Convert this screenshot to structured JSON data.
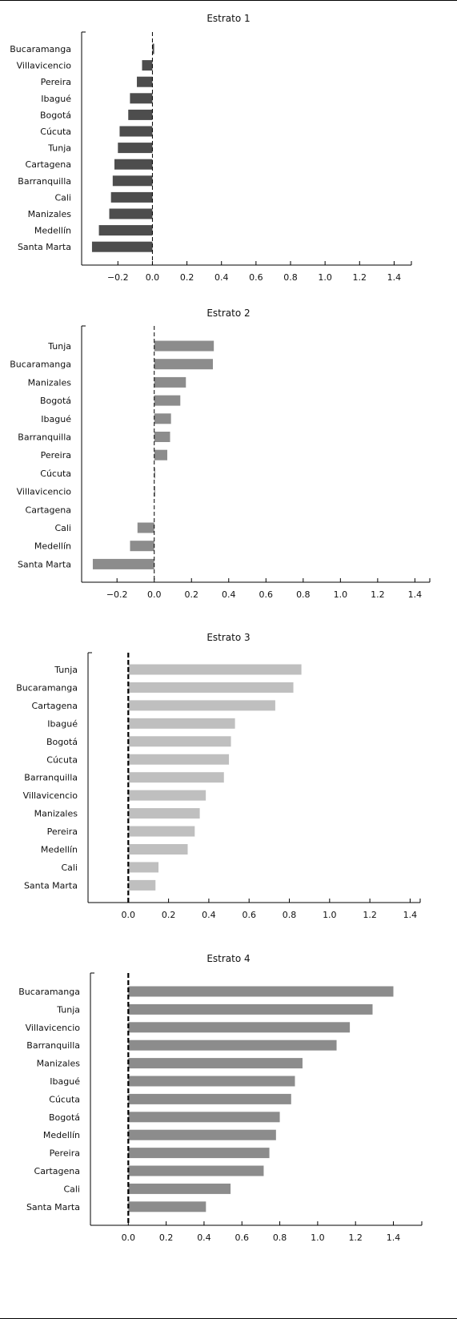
{
  "chart_data": [
    {
      "type": "bar",
      "orientation": "horizontal",
      "title": "Estrato 1",
      "categories": [
        "Bucaramanga",
        "Villavicencio",
        "Pereira",
        "Ibagué",
        "Bogotá",
        "Cúcuta",
        "Tunja",
        "Cartagena",
        "Barranquilla",
        "Cali",
        "Manizales",
        "Medellín",
        "Santa Marta"
      ],
      "values": [
        0.01,
        -0.06,
        -0.09,
        -0.13,
        -0.14,
        -0.19,
        -0.2,
        -0.22,
        -0.23,
        -0.24,
        -0.25,
        -0.31,
        -0.35
      ],
      "xticks": [
        -0.2,
        0.0,
        0.2,
        0.4,
        0.6,
        0.8,
        1.0,
        1.2,
        1.4
      ],
      "tick_labels": [
        "−0.2",
        "0.0",
        "0.2",
        "0.4",
        "0.6",
        "0.8",
        "1.0",
        "1.2",
        "1.4"
      ],
      "xlim": [
        -0.41,
        1.5
      ],
      "color": "#4d4d4d"
    },
    {
      "type": "bar",
      "orientation": "horizontal",
      "title": "Estrato 2",
      "categories": [
        "Tunja",
        "Bucaramanga",
        "Manizales",
        "Bogotá",
        "Ibagué",
        "Barranquilla",
        "Pereira",
        "Cúcuta",
        "Villavicencio",
        "Cartagena",
        "Cali",
        "Medellín",
        "Santa Marta"
      ],
      "values": [
        0.32,
        0.315,
        0.17,
        0.14,
        0.09,
        0.085,
        0.07,
        0.005,
        0.005,
        0.0,
        -0.09,
        -0.13,
        -0.33
      ],
      "xticks": [
        -0.2,
        0.0,
        0.2,
        0.4,
        0.6,
        0.8,
        1.0,
        1.2,
        1.4
      ],
      "tick_labels": [
        "−0.2",
        "0.0",
        "0.2",
        "0.4",
        "0.6",
        "0.8",
        "1.0",
        "1.2",
        "1.4"
      ],
      "xlim": [
        -0.39,
        1.48
      ],
      "color": "#8c8c8c"
    },
    {
      "type": "bar",
      "orientation": "horizontal",
      "title": "Estrato 3",
      "categories": [
        "Tunja",
        "Bucaramanga",
        "Cartagena",
        "Ibagué",
        "Bogotá",
        "Cúcuta",
        "Barranquilla",
        "Villavicencio",
        "Manizales",
        "Pereira",
        "Medellín",
        "Cali",
        "Santa Marta"
      ],
      "values": [
        0.86,
        0.82,
        0.73,
        0.53,
        0.51,
        0.5,
        0.475,
        0.385,
        0.355,
        0.33,
        0.295,
        0.15,
        0.135
      ],
      "xticks": [
        0.0,
        0.2,
        0.4,
        0.6,
        0.8,
        1.0,
        1.2,
        1.4
      ],
      "tick_labels": [
        "0.0",
        "0.2",
        "0.4",
        "0.6",
        "0.8",
        "1.0",
        "1.2",
        "1.4"
      ],
      "xlim": [
        -0.2,
        1.45
      ],
      "color": "#bfbfbf"
    },
    {
      "type": "bar",
      "orientation": "horizontal",
      "title": "Estrato 4",
      "categories": [
        "Bucaramanga",
        "Tunja",
        "Villavicencio",
        "Barranquilla",
        "Manizales",
        "Ibagué",
        "Cúcuta",
        "Bogotá",
        "Medellín",
        "Pereira",
        "Cartagena",
        "Cali",
        "Santa Marta"
      ],
      "values": [
        1.4,
        1.29,
        1.17,
        1.1,
        0.92,
        0.88,
        0.86,
        0.8,
        0.78,
        0.745,
        0.715,
        0.54,
        0.41
      ],
      "xticks": [
        0.0,
        0.2,
        0.4,
        0.6,
        0.8,
        1.0,
        1.2,
        1.4
      ],
      "tick_labels": [
        "0.0",
        "0.2",
        "0.4",
        "0.6",
        "0.8",
        "1.0",
        "1.2",
        "1.4"
      ],
      "xlim": [
        -0.2,
        1.55
      ],
      "color": "#8c8c8c"
    }
  ]
}
